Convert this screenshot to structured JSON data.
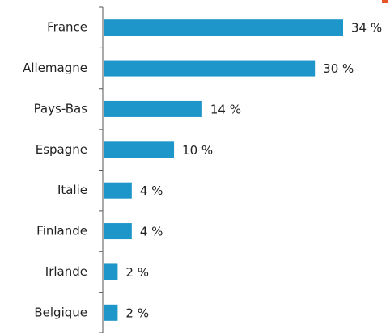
{
  "chart_data": {
    "type": "bar",
    "orientation": "horizontal",
    "categories": [
      "France",
      "Allemagne",
      "Pays-Bas",
      "Espagne",
      "Italie",
      "Finlande",
      "Irlande",
      "Belgique"
    ],
    "values": [
      34,
      30,
      14,
      10,
      4,
      4,
      2,
      2
    ],
    "value_labels": [
      "34 %",
      "30 %",
      "14 %",
      "10 %",
      "4 %",
      "4 %",
      "2 %",
      "2 %"
    ],
    "color": "#1f96c9"
  }
}
